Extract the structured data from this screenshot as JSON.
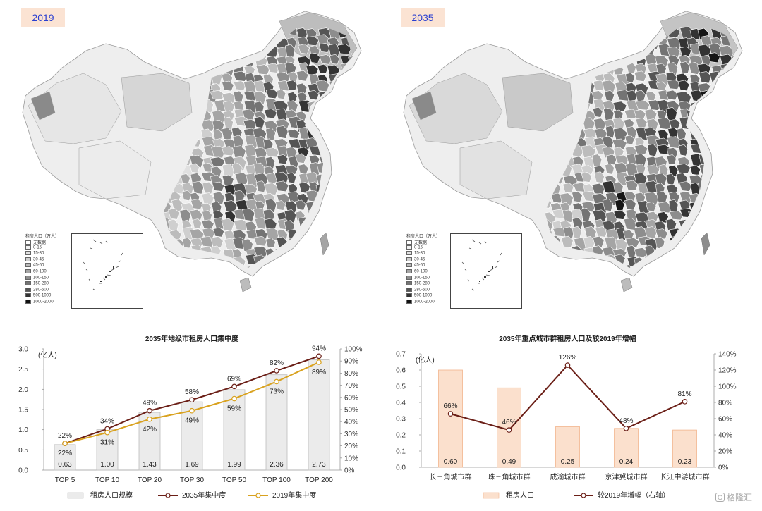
{
  "maps": {
    "left": {
      "year": "2019"
    },
    "right": {
      "year": "2035"
    },
    "legend": {
      "title": "租房人口（万人）",
      "items": [
        "无数据",
        "0-15",
        "15-30",
        "30-45",
        "45-60",
        "60-100",
        "100-150",
        "150-280",
        "280-500",
        "500-1000",
        "1000-2000"
      ],
      "colors": [
        "#ffffff",
        "#f2f2f2",
        "#e2e2e2",
        "#cfcfcf",
        "#bcbcbc",
        "#a5a5a5",
        "#8d8d8d",
        "#747474",
        "#555555",
        "#333333",
        "#111111"
      ]
    }
  },
  "watermark": {
    "text": "格隆汇",
    "logo": "G"
  },
  "chart_data": [
    {
      "type": "bar",
      "title": "2035年地级市租房人口集中度",
      "ylabel": "(亿人)",
      "categories": [
        "TOP 5",
        "TOP 10",
        "TOP 20",
        "TOP 30",
        "TOP 50",
        "TOP 100",
        "TOP 200"
      ],
      "ylim": [
        0,
        3.0
      ],
      "yticks": [
        "0.0",
        "0.5",
        "1.0",
        "1.5",
        "2.0",
        "2.5",
        "3.0"
      ],
      "y2lim": [
        0,
        100
      ],
      "y2ticks": [
        "0%",
        "10%",
        "20%",
        "30%",
        "40%",
        "50%",
        "60%",
        "70%",
        "80%",
        "90%",
        "100%"
      ],
      "series": [
        {
          "name": "租房人口规模",
          "kind": "bar",
          "axis": "left",
          "values": [
            0.63,
            1.0,
            1.43,
            1.69,
            1.99,
            2.36,
            2.73
          ],
          "labels": [
            "0.63",
            "1.00",
            "1.43",
            "1.69",
            "1.99",
            "2.36",
            "2.73"
          ],
          "color": "#ebebeb",
          "stroke": "#bdbdbd"
        },
        {
          "name": "2035年集中度",
          "kind": "line",
          "axis": "right",
          "values": [
            22,
            34,
            49,
            58,
            69,
            82,
            94
          ],
          "labels": [
            "22%",
            "34%",
            "49%",
            "58%",
            "69%",
            "82%",
            "94%"
          ],
          "color": "#6b1f17"
        },
        {
          "name": "2019年集中度",
          "kind": "line",
          "axis": "right",
          "values": [
            22,
            31,
            42,
            49,
            59,
            73,
            89
          ],
          "labels": [
            "22%",
            "31%",
            "42%",
            "49%",
            "59%",
            "73%",
            "89%"
          ],
          "color": "#d9a21f"
        }
      ],
      "legend": [
        "租房人口规模",
        "2035年集中度",
        "2019年集中度"
      ]
    },
    {
      "type": "bar",
      "title": "2035年重点城市群租房人口及较2019年增幅",
      "ylabel": "(亿人)",
      "categories": [
        "长三角城市群",
        "珠三角城市群",
        "成渝城市群",
        "京津冀城市群",
        "长江中游城市群"
      ],
      "ylim": [
        0,
        0.7
      ],
      "yticks": [
        "0.0",
        "0.1",
        "0.2",
        "0.3",
        "0.4",
        "0.5",
        "0.6",
        "0.7"
      ],
      "y2lim": [
        0,
        140
      ],
      "y2ticks": [
        "0%",
        "20%",
        "40%",
        "60%",
        "80%",
        "100%",
        "120%",
        "140%"
      ],
      "series": [
        {
          "name": "租房人口",
          "kind": "bar",
          "axis": "left",
          "values": [
            0.6,
            0.49,
            0.25,
            0.24,
            0.23
          ],
          "labels": [
            "0.60",
            "0.49",
            "0.25",
            "0.24",
            "0.23"
          ],
          "color": "#fbe0cd",
          "stroke": "#f2b48c"
        },
        {
          "name": "较2019年增幅（右轴）",
          "kind": "line",
          "axis": "right",
          "values": [
            66,
            46,
            126,
            48,
            81
          ],
          "labels": [
            "66%",
            "46%",
            "126%",
            "48%",
            "81%"
          ],
          "color": "#6b1f17"
        }
      ],
      "legend": [
        "租房人口",
        "较2019年增幅（右轴）"
      ]
    }
  ]
}
